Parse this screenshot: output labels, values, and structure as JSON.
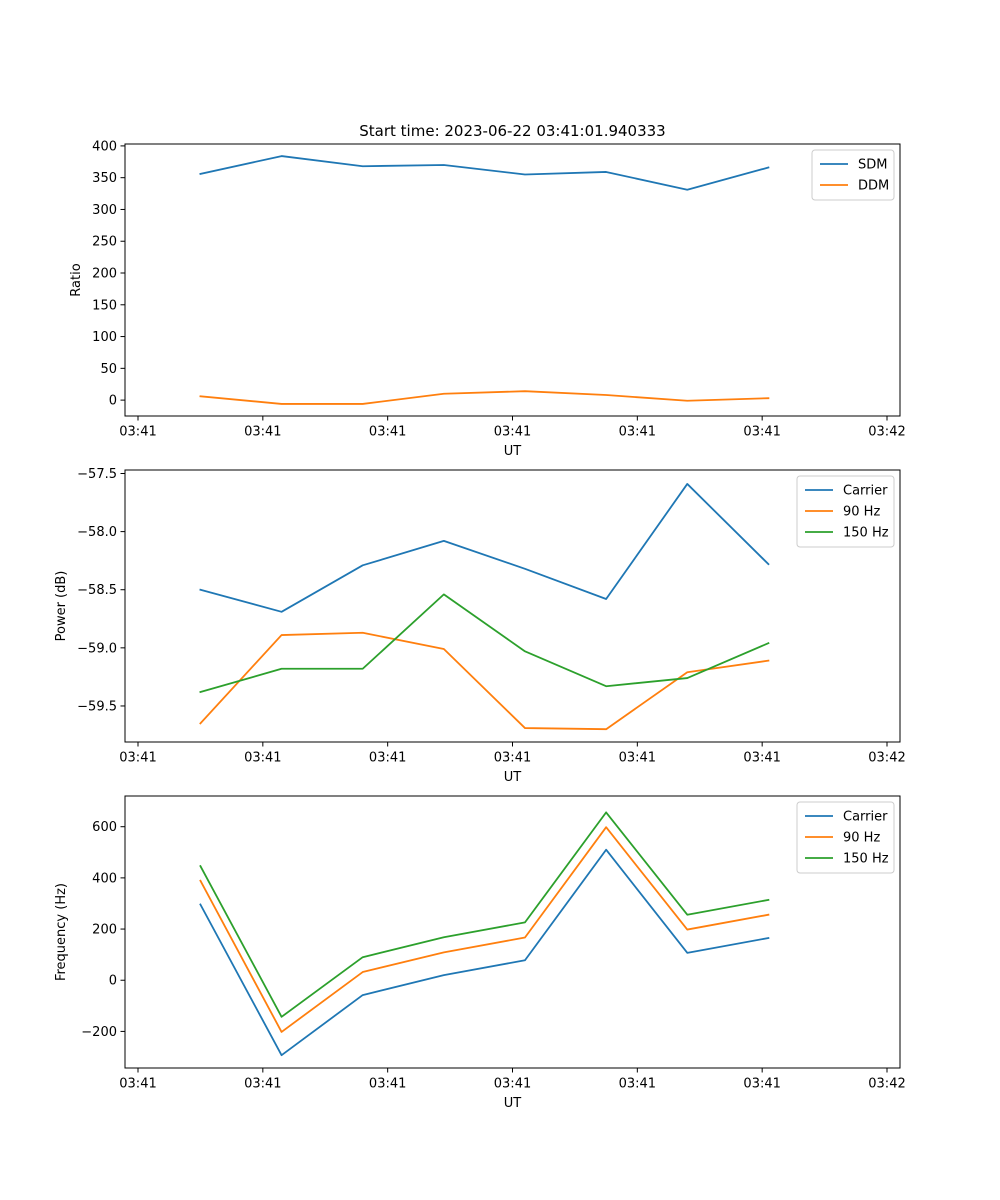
{
  "figure_title": "Start time: 2023-06-22 03:41:01.940333",
  "colors": {
    "blue": "#1f77b4",
    "orange": "#ff7f0e",
    "green": "#2ca02c"
  },
  "chart_data": [
    {
      "type": "line",
      "xlabel": "UT",
      "ylabel": "Ratio",
      "x_tick_labels": [
        "03:41",
        "03:41",
        "03:41",
        "03:41",
        "03:41",
        "03:41",
        "03:42"
      ],
      "x_range": [
        0,
        6
      ],
      "x": [
        0.5,
        1.15,
        1.8,
        2.45,
        3.1,
        3.75,
        4.4,
        5.05
      ],
      "ylim": [
        -25,
        403
      ],
      "y_ticks": [
        0,
        50,
        100,
        150,
        200,
        250,
        300,
        350,
        400
      ],
      "legend_position": "upper right",
      "series": [
        {
          "name": "SDM",
          "color": "#1f77b4",
          "values": [
            356,
            384,
            368,
            370,
            355,
            359,
            331,
            366
          ]
        },
        {
          "name": "DDM",
          "color": "#ff7f0e",
          "values": [
            6,
            -6,
            -6,
            10,
            14,
            8,
            -1,
            3
          ]
        }
      ]
    },
    {
      "type": "line",
      "xlabel": "UT",
      "ylabel": "Power (dB)",
      "x_tick_labels": [
        "03:41",
        "03:41",
        "03:41",
        "03:41",
        "03:41",
        "03:41",
        "03:42"
      ],
      "x_range": [
        0,
        6
      ],
      "x": [
        0.5,
        1.15,
        1.8,
        2.45,
        3.1,
        3.75,
        4.4,
        5.05
      ],
      "ylim": [
        -59.81,
        -57.47
      ],
      "y_ticks": [
        -59.5,
        -59.0,
        -58.5,
        -58.0,
        -57.5
      ],
      "y_tick_labels": [
        "−59.5",
        "−59.0",
        "−58.5",
        "−58.0",
        "−57.5"
      ],
      "legend_position": "upper right",
      "series": [
        {
          "name": "Carrier",
          "color": "#1f77b4",
          "values": [
            -58.5,
            -58.69,
            -58.29,
            -58.08,
            -58.32,
            -58.58,
            -57.59,
            -58.28
          ]
        },
        {
          "name": "90 Hz",
          "color": "#ff7f0e",
          "values": [
            -59.65,
            -58.89,
            -58.87,
            -59.01,
            -59.69,
            -59.7,
            -59.21,
            -59.11
          ]
        },
        {
          "name": "150 Hz",
          "color": "#2ca02c",
          "values": [
            -59.38,
            -59.18,
            -59.18,
            -58.54,
            -59.03,
            -59.33,
            -59.26,
            -58.96
          ]
        }
      ]
    },
    {
      "type": "line",
      "xlabel": "UT",
      "ylabel": "Frequency (Hz)",
      "x_tick_labels": [
        "03:41",
        "03:41",
        "03:41",
        "03:41",
        "03:41",
        "03:41",
        "03:42"
      ],
      "x_range": [
        0,
        6
      ],
      "x": [
        0.5,
        1.15,
        1.8,
        2.45,
        3.1,
        3.75,
        4.4,
        5.05
      ],
      "ylim": [
        -343,
        720
      ],
      "y_ticks": [
        -200,
        0,
        200,
        400,
        600
      ],
      "y_tick_labels": [
        "−200",
        "0",
        "200",
        "400",
        "600"
      ],
      "legend_position": "upper right",
      "series": [
        {
          "name": "Carrier",
          "color": "#1f77b4",
          "values": [
            296,
            -293,
            -58,
            20,
            78,
            510,
            107,
            165
          ]
        },
        {
          "name": "90 Hz",
          "color": "#ff7f0e",
          "values": [
            389,
            -202,
            32,
            109,
            167,
            598,
            198,
            256
          ]
        },
        {
          "name": "150 Hz",
          "color": "#2ca02c",
          "values": [
            446,
            -143,
            90,
            168,
            226,
            656,
            256,
            314
          ]
        }
      ]
    }
  ]
}
